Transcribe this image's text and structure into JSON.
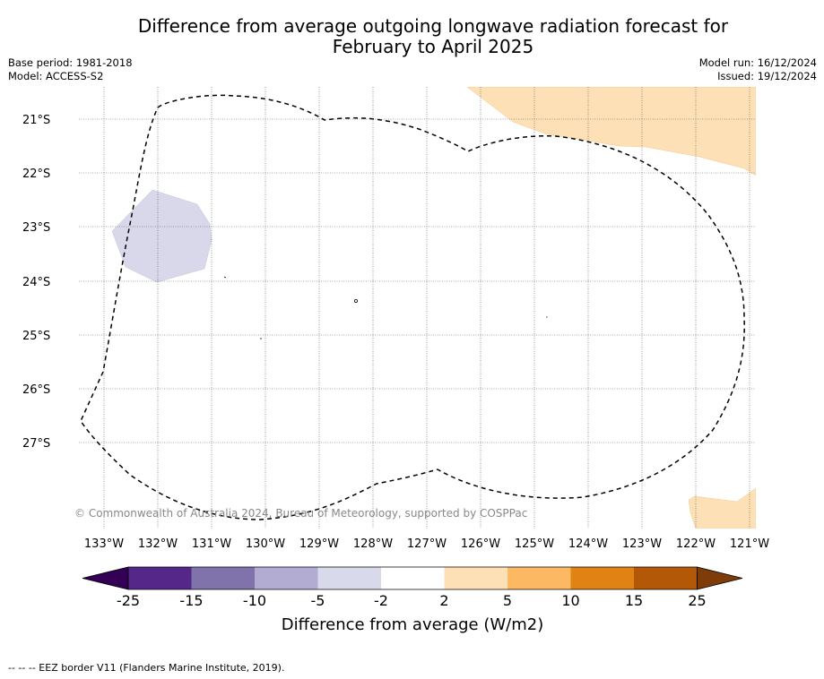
{
  "header": {
    "title_line1": "Difference from average outgoing longwave radiation forecast for",
    "title_line2": "February to April 2025",
    "base_period": "Base period: 1981-2018",
    "model": "Model: ACCESS-S2",
    "model_run": "Model run: 16/12/2024",
    "issued": "Issued: 19/12/2024"
  },
  "map": {
    "lat_labels": [
      "21°S",
      "22°S",
      "23°S",
      "24°S",
      "25°S",
      "26°S",
      "27°S"
    ],
    "lon_labels": [
      "133°W",
      "132°W",
      "131°W",
      "130°W",
      "129°W",
      "128°W",
      "127°W",
      "126°W",
      "125°W",
      "124°W",
      "123°W",
      "122°W",
      "121°W"
    ],
    "copyright": "© Commonwealth of Australia 2024, Bureau of Meteorology, supported by COSPPac",
    "colors": {
      "positive_2_5": "#fde0b6",
      "negative_5_2": "#d8d8ea",
      "eez_border": "#000000"
    }
  },
  "colorbar": {
    "ticks": [
      "-25",
      "-15",
      "-10",
      "-5",
      "-2",
      "2",
      "5",
      "10",
      "15",
      "25"
    ],
    "colors": [
      "#330055",
      "#542788",
      "#8073ac",
      "#b2abd2",
      "#d8daeb",
      "#ffffff",
      "#fee0b6",
      "#fdb863",
      "#e08214",
      "#b35806",
      "#7f3b08"
    ],
    "label": "Difference from average (W/m2)"
  },
  "footer": {
    "legend_text": "--  --  -- EEZ border V11 (Flanders Marine Institute, 2019)."
  }
}
